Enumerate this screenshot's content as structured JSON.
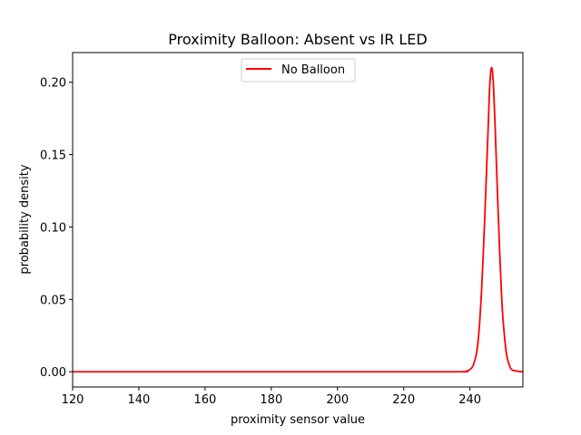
{
  "chart_data": {
    "type": "line",
    "title": "Proximity Balloon: Absent vs IR LED",
    "xlabel": "proximity sensor value",
    "ylabel": "probability density",
    "xlim": [
      120,
      256
    ],
    "ylim": [
      -0.0105,
      0.2205
    ],
    "xticks": [
      120,
      140,
      160,
      180,
      200,
      220,
      240
    ],
    "xtick_labels": [
      "120",
      "140",
      "160",
      "180",
      "200",
      "220",
      "240"
    ],
    "yticks": [
      0.0,
      0.05,
      0.1,
      0.15,
      0.2
    ],
    "ytick_labels": [
      "0.00",
      "0.05",
      "0.10",
      "0.15",
      "0.20"
    ],
    "grid": false,
    "legend_position": "upper center",
    "series": [
      {
        "name": "No Balloon",
        "color": "#ff0000",
        "x": [
          120,
          200,
          236,
          238,
          239,
          240,
          241,
          242,
          242.5,
          243,
          243.5,
          244,
          244.5,
          245,
          245.5,
          246,
          246.5,
          247,
          247.5,
          248,
          248.5,
          249,
          249.5,
          250,
          251,
          252,
          253,
          256
        ],
        "y": [
          0,
          0,
          0,
          0.0001,
          0.0004,
          0.0015,
          0.0045,
          0.013,
          0.022,
          0.036,
          0.055,
          0.08,
          0.108,
          0.138,
          0.168,
          0.198,
          0.21,
          0.202,
          0.176,
          0.144,
          0.112,
          0.082,
          0.056,
          0.036,
          0.013,
          0.004,
          0.001,
          0
        ]
      }
    ]
  }
}
